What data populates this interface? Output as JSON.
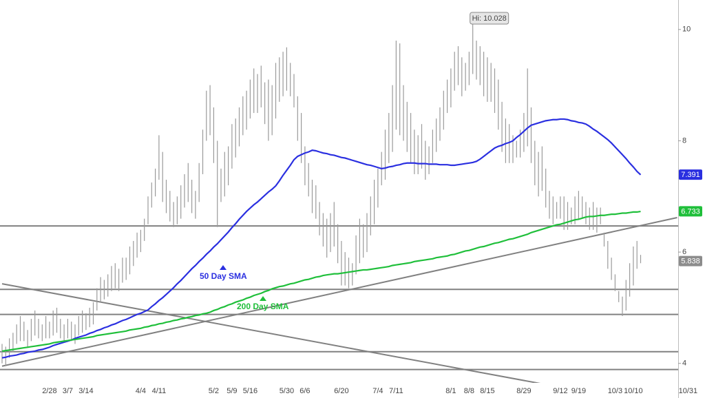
{
  "chart_data": {
    "type": "ohlc",
    "ylim": [
      3.65,
      10.53
    ],
    "yticks": [
      4,
      6,
      8,
      10
    ],
    "grid": false,
    "categories": [
      null,
      null,
      null,
      null,
      null,
      null,
      null,
      null,
      null,
      null,
      null,
      null,
      null,
      "2/28",
      null,
      null,
      null,
      null,
      "3/7",
      null,
      null,
      null,
      null,
      "3/14",
      null,
      null,
      null,
      null,
      null,
      null,
      null,
      null,
      null,
      null,
      null,
      null,
      null,
      null,
      "4/4",
      null,
      null,
      null,
      null,
      "4/11",
      null,
      null,
      null,
      null,
      null,
      null,
      null,
      null,
      null,
      null,
      null,
      null,
      null,
      null,
      "5/2",
      null,
      null,
      null,
      null,
      "5/9",
      null,
      null,
      null,
      null,
      "5/16",
      null,
      null,
      null,
      null,
      null,
      null,
      null,
      null,
      null,
      "5/30",
      null,
      null,
      null,
      null,
      "6/6",
      null,
      null,
      null,
      null,
      null,
      null,
      null,
      null,
      null,
      "6/20",
      null,
      null,
      null,
      null,
      null,
      null,
      null,
      null,
      null,
      "7/4",
      null,
      null,
      null,
      null,
      "7/11",
      null,
      null,
      null,
      null,
      null,
      null,
      null,
      null,
      null,
      null,
      null,
      null,
      null,
      null,
      "8/1",
      null,
      null,
      null,
      null,
      "8/8",
      null,
      null,
      null,
      null,
      "8/15",
      null,
      null,
      null,
      null,
      null,
      null,
      null,
      null,
      null,
      "8/29",
      null,
      null,
      null,
      null,
      null,
      null,
      null,
      null,
      null,
      "9/12",
      null,
      null,
      null,
      null,
      "9/19",
      null,
      null,
      null,
      null,
      null,
      null,
      null,
      null,
      null,
      "10/3",
      null,
      null,
      null,
      null,
      "10/10",
      null,
      null,
      null,
      null,
      null,
      null,
      null,
      null,
      null,
      null,
      null,
      null,
      null,
      null,
      "10/31"
    ],
    "price": {
      "color": "#9a9a9a",
      "last_value": 5.838,
      "last_color": "#8c8c8c",
      "high": [
        4.35,
        4.3,
        4.45,
        4.55,
        4.7,
        4.85,
        4.75,
        4.6,
        4.8,
        4.95,
        4.8,
        4.7,
        4.85,
        4.75,
        4.95,
        5.0,
        4.8,
        4.7,
        4.8,
        4.75,
        4.7,
        4.85,
        4.95,
        4.9,
        5.0,
        5.1,
        5.35,
        5.55,
        5.5,
        5.6,
        5.75,
        5.8,
        5.7,
        5.9,
        5.9,
        6.1,
        6.2,
        6.35,
        6.4,
        6.6,
        7.0,
        7.25,
        7.5,
        8.1,
        7.8,
        7.3,
        7.1,
        6.9,
        7.0,
        7.2,
        7.4,
        7.6,
        7.3,
        7.1,
        7.6,
        8.2,
        8.9,
        9.0,
        8.6,
        8.0,
        7.5,
        7.8,
        7.9,
        8.3,
        8.4,
        8.6,
        8.8,
        8.9,
        9.1,
        9.3,
        9.2,
        9.35,
        9.05,
        9.1,
        9.0,
        9.4,
        9.5,
        9.6,
        9.68,
        9.4,
        9.2,
        8.8,
        8.5,
        7.9,
        7.6,
        7.3,
        7.2,
        6.9,
        6.7,
        6.6,
        6.7,
        6.9,
        6.5,
        6.2,
        6.0,
        5.9,
        5.8,
        6.3,
        6.6,
        6.5,
        6.7,
        7.0,
        7.3,
        7.5,
        7.8,
        8.2,
        8.5,
        9.0,
        9.8,
        9.75,
        9.0,
        8.7,
        8.5,
        8.2,
        8.1,
        8.3,
        8.0,
        7.9,
        8.2,
        8.4,
        8.6,
        8.9,
        9.1,
        9.3,
        9.6,
        9.7,
        9.5,
        9.4,
        9.6,
        10.028,
        9.8,
        9.7,
        9.6,
        9.5,
        9.4,
        9.3,
        9.1,
        8.7,
        8.4,
        8.3,
        8.1,
        8.0,
        8.2,
        8.5,
        9.3,
        8.6,
        8.0,
        7.8,
        7.9,
        7.5,
        7.1,
        7.0,
        6.9,
        7.0,
        7.0,
        6.9,
        6.8,
        7.0,
        7.1,
        7.0,
        6.9,
        6.8,
        6.9,
        6.8,
        6.8,
        6.35,
        6.2,
        5.9,
        5.6,
        5.3,
        5.2,
        5.5,
        5.8,
        6.1,
        6.2,
        5.95,
        null,
        null,
        null,
        null,
        null,
        null,
        null,
        null,
        null,
        null,
        null,
        null,
        null
      ],
      "low": [
        4.0,
        3.95,
        4.1,
        4.2,
        4.35,
        4.4,
        4.4,
        4.3,
        4.4,
        4.5,
        4.45,
        4.4,
        4.45,
        4.45,
        4.5,
        4.55,
        4.45,
        4.4,
        4.45,
        4.4,
        4.35,
        4.5,
        4.55,
        4.6,
        4.65,
        4.7,
        4.95,
        5.1,
        5.15,
        5.2,
        5.3,
        5.35,
        5.3,
        5.45,
        5.5,
        5.6,
        5.75,
        5.9,
        6.0,
        6.2,
        6.5,
        6.8,
        7.0,
        7.3,
        6.9,
        6.7,
        6.55,
        6.45,
        6.5,
        6.6,
        6.8,
        6.9,
        6.7,
        6.6,
        6.9,
        7.4,
        8.0,
        8.1,
        7.6,
        6.45,
        6.9,
        7.0,
        7.2,
        7.5,
        7.7,
        7.9,
        8.1,
        8.2,
        8.4,
        8.5,
        8.5,
        8.6,
        8.3,
        8.0,
        8.1,
        8.4,
        8.7,
        8.8,
        8.9,
        8.8,
        8.6,
        8.0,
        7.6,
        7.2,
        7.0,
        6.7,
        6.6,
        6.3,
        6.1,
        5.9,
        6.0,
        6.1,
        5.8,
        5.4,
        5.4,
        5.35,
        5.4,
        5.6,
        5.8,
        5.9,
        6.0,
        6.3,
        6.5,
        6.8,
        7.2,
        7.3,
        7.6,
        7.8,
        8.2,
        8.1,
        8.0,
        7.8,
        7.6,
        7.4,
        7.4,
        7.5,
        7.3,
        7.4,
        7.6,
        7.8,
        8.0,
        8.2,
        8.5,
        8.6,
        8.9,
        9.0,
        8.8,
        8.9,
        9.0,
        9.2,
        9.1,
        9.0,
        8.8,
        8.7,
        8.7,
        8.5,
        8.2,
        7.8,
        7.6,
        7.6,
        7.6,
        7.7,
        7.7,
        7.8,
        7.9,
        7.6,
        7.2,
        7.0,
        7.1,
        6.8,
        6.6,
        6.5,
        6.6,
        6.6,
        6.4,
        6.4,
        6.5,
        6.5,
        6.6,
        6.6,
        6.5,
        6.4,
        6.4,
        6.35,
        6.5,
        6.1,
        5.7,
        5.5,
        5.3,
        5.1,
        4.85,
        4.95,
        5.2,
        5.4,
        5.7,
        5.8,
        null,
        null,
        null,
        null,
        null,
        null,
        null,
        null,
        null,
        null,
        null,
        null,
        null
      ]
    },
    "series": [
      {
        "name": "50 Day SMA",
        "color": "#2a2fe0",
        "last_value": 7.391,
        "values": [
          4.1,
          4.11,
          4.13,
          4.14,
          4.15,
          4.17,
          4.18,
          4.2,
          4.21,
          4.22,
          4.24,
          4.25,
          4.27,
          4.29,
          4.32,
          4.34,
          4.36,
          4.38,
          4.4,
          4.42,
          4.45,
          4.47,
          4.49,
          4.51,
          4.54,
          4.56,
          4.59,
          4.61,
          4.64,
          4.66,
          4.69,
          4.71,
          4.74,
          4.77,
          4.79,
          4.82,
          4.85,
          4.88,
          4.9,
          4.93,
          4.96,
          5.02,
          5.07,
          5.13,
          5.18,
          5.24,
          5.3,
          5.36,
          5.43,
          5.49,
          5.56,
          5.63,
          5.7,
          5.76,
          5.83,
          5.89,
          5.96,
          6.02,
          6.09,
          6.15,
          6.22,
          6.29,
          6.36,
          6.44,
          6.51,
          6.59,
          6.66,
          6.73,
          6.79,
          6.85,
          6.9,
          6.96,
          7.02,
          7.08,
          7.13,
          7.19,
          7.28,
          7.38,
          7.47,
          7.56,
          7.66,
          7.72,
          7.75,
          7.78,
          7.8,
          7.83,
          7.82,
          7.8,
          7.78,
          7.77,
          7.75,
          7.74,
          7.72,
          7.7,
          7.69,
          7.67,
          7.65,
          7.63,
          7.61,
          7.59,
          7.57,
          7.56,
          7.54,
          7.52,
          7.5,
          7.51,
          7.53,
          7.54,
          7.56,
          7.57,
          7.59,
          7.6,
          7.6,
          7.6,
          7.59,
          7.59,
          7.59,
          7.58,
          7.58,
          7.58,
          7.57,
          7.57,
          7.57,
          7.56,
          7.56,
          7.57,
          7.58,
          7.59,
          7.6,
          7.61,
          7.63,
          7.67,
          7.72,
          7.77,
          7.82,
          7.87,
          7.9,
          7.92,
          7.95,
          7.97,
          8.0,
          8.06,
          8.11,
          8.17,
          8.23,
          8.28,
          8.3,
          8.32,
          8.34,
          8.36,
          8.37,
          8.38,
          8.38,
          8.39,
          8.39,
          8.38,
          8.36,
          8.35,
          8.33,
          8.32,
          8.3,
          8.26,
          8.21,
          8.17,
          8.12,
          8.07,
          8.02,
          7.96,
          7.89,
          7.82,
          7.75,
          7.68,
          7.6,
          7.53,
          7.45,
          7.39,
          null,
          null,
          null,
          null,
          null,
          null,
          null,
          null,
          null,
          null,
          null,
          null,
          null
        ]
      },
      {
        "name": "200 Day SMA",
        "color": "#1fbf3a",
        "last_value": 6.733,
        "values": [
          4.22,
          4.23,
          4.24,
          4.25,
          4.26,
          4.27,
          4.28,
          4.29,
          4.3,
          4.31,
          4.32,
          4.33,
          4.34,
          4.35,
          4.37,
          4.38,
          4.39,
          4.4,
          4.41,
          4.42,
          4.43,
          4.44,
          4.45,
          4.46,
          4.47,
          4.48,
          4.5,
          4.51,
          4.52,
          4.53,
          4.54,
          4.55,
          4.56,
          4.57,
          4.58,
          4.6,
          4.61,
          4.62,
          4.63,
          4.65,
          4.66,
          4.68,
          4.69,
          4.71,
          4.72,
          4.74,
          4.75,
          4.77,
          4.78,
          4.8,
          4.81,
          4.83,
          4.84,
          4.86,
          4.87,
          4.89,
          4.9,
          4.92,
          4.95,
          4.97,
          5.0,
          5.02,
          5.05,
          5.07,
          5.1,
          5.12,
          5.14,
          5.17,
          5.19,
          5.22,
          5.24,
          5.26,
          5.29,
          5.31,
          5.34,
          5.36,
          5.38,
          5.39,
          5.41,
          5.43,
          5.44,
          5.46,
          5.48,
          5.5,
          5.51,
          5.53,
          5.55,
          5.56,
          5.58,
          5.59,
          5.6,
          5.61,
          5.61,
          5.62,
          5.63,
          5.64,
          5.65,
          5.66,
          5.67,
          5.68,
          5.68,
          5.69,
          5.7,
          5.71,
          5.72,
          5.73,
          5.74,
          5.76,
          5.77,
          5.78,
          5.79,
          5.8,
          5.81,
          5.83,
          5.84,
          5.85,
          5.86,
          5.87,
          5.88,
          5.9,
          5.91,
          5.92,
          5.93,
          5.95,
          5.96,
          5.98,
          6.0,
          6.02,
          6.03,
          6.05,
          6.07,
          6.09,
          6.1,
          6.12,
          6.14,
          6.16,
          6.17,
          6.19,
          6.21,
          6.23,
          6.24,
          6.26,
          6.28,
          6.3,
          6.32,
          6.35,
          6.37,
          6.39,
          6.41,
          6.43,
          6.45,
          6.47,
          6.49,
          6.5,
          6.52,
          6.54,
          6.56,
          6.58,
          6.59,
          6.61,
          6.63,
          6.64,
          6.64,
          6.65,
          6.66,
          6.66,
          6.67,
          6.68,
          6.68,
          6.69,
          6.7,
          6.7,
          6.71,
          6.72,
          6.72,
          6.73,
          null,
          null,
          null,
          null,
          null,
          null,
          null,
          null,
          null,
          null,
          null,
          null,
          null
        ]
      }
    ],
    "hlines": [
      6.47,
      5.33,
      4.88,
      4.21,
      3.89
    ],
    "trendlines": [
      {
        "from": [
          0,
          5.43
        ],
        "to": [
          149,
          3.62
        ]
      },
      {
        "from": [
          0,
          3.95
        ],
        "to": [
          185,
          6.62
        ]
      }
    ],
    "line_color": "#808080",
    "annotation": {
      "text": "Hi: 10.028",
      "value": 10.028
    }
  }
}
